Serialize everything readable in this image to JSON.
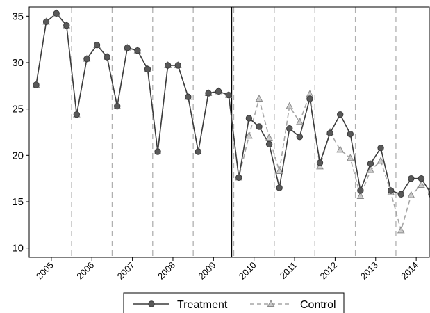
{
  "chart_data": {
    "type": "line",
    "x_tick_labels": [
      "2005",
      "2006",
      "2007",
      "2008",
      "2009",
      "2010",
      "2011",
      "2012",
      "2013",
      "2014"
    ],
    "ylim": [
      9,
      36
    ],
    "y_ticks": [
      10,
      15,
      20,
      25,
      30,
      35
    ],
    "y_tick_labels": [
      "10",
      "15",
      "20",
      "25",
      "30",
      "35"
    ],
    "period_count": 40,
    "treatment_start_index": 19,
    "series": [
      {
        "name": "Treatment",
        "color": "#3c3c3c",
        "line_style": "solid",
        "marker": "circle",
        "values": [
          27.6,
          34.4,
          35.3,
          34.0,
          24.4,
          30.4,
          31.9,
          30.6,
          25.3,
          31.6,
          31.3,
          29.3,
          20.4,
          29.7,
          29.7,
          26.3,
          20.4,
          26.7,
          26.9,
          26.5,
          17.6,
          24.0,
          23.1,
          21.2,
          16.5,
          22.9,
          22.0,
          26.1,
          19.2,
          22.4,
          24.4,
          22.3,
          16.2,
          19.1,
          20.8,
          16.2,
          15.8,
          17.5,
          17.5,
          15.8
        ]
      },
      {
        "name": "Control",
        "color": "#a6a6a6",
        "line_style": "dashed",
        "marker": "triangle",
        "values": [
          27.6,
          34.4,
          35.3,
          34.0,
          24.4,
          30.4,
          31.9,
          30.6,
          25.3,
          31.6,
          31.3,
          29.3,
          20.4,
          29.7,
          29.7,
          26.3,
          20.4,
          26.7,
          26.9,
          26.5,
          17.6,
          22.1,
          26.1,
          21.9,
          18.3,
          25.3,
          23.6,
          26.6,
          18.8,
          22.5,
          20.6,
          19.7,
          15.6,
          18.4,
          19.4,
          16.0,
          11.9,
          15.7,
          16.8,
          16.3
        ]
      }
    ],
    "legend_position": "bottom",
    "grid": false
  }
}
